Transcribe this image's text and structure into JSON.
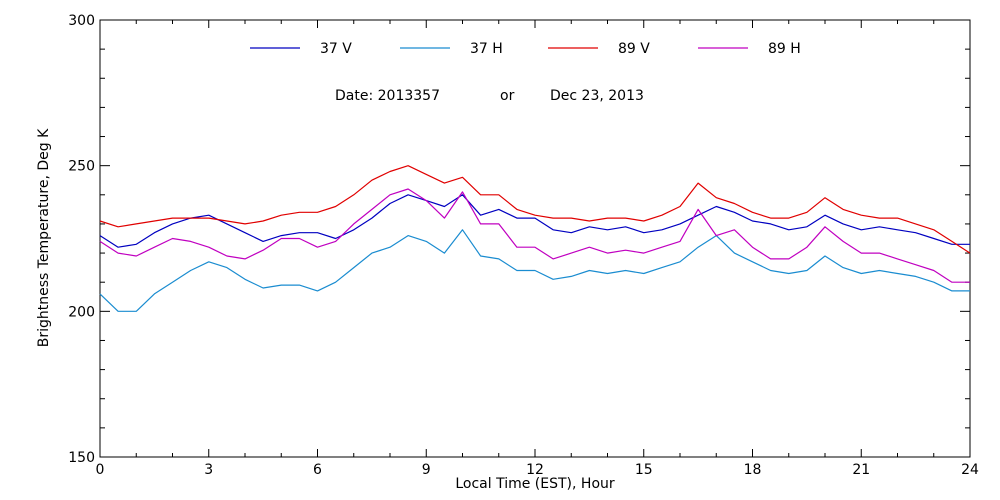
{
  "chart_data": {
    "type": "line",
    "title": "",
    "xlabel": "Local Time (EST), Hour",
    "ylabel": "Brightness Temperature, Deg K",
    "xlim": [
      0,
      24
    ],
    "ylim": [
      150,
      300
    ],
    "x_ticks": [
      0,
      3,
      6,
      9,
      12,
      15,
      18,
      21,
      24
    ],
    "y_ticks": [
      150,
      200,
      250,
      300
    ],
    "grid": false,
    "legend_position": "top",
    "annotation": {
      "date_label": "Date: 2013357",
      "or_label": "or",
      "date_text": "Dec 23, 2013"
    },
    "series": [
      {
        "name": "37 V",
        "color": "#0000c0",
        "x": [
          0,
          0.5,
          1,
          1.5,
          2,
          2.5,
          3,
          3.5,
          4,
          4.5,
          5,
          5.5,
          6,
          6.5,
          7,
          7.5,
          8,
          8.5,
          9,
          9.5,
          10,
          10.5,
          11,
          11.5,
          12,
          12.5,
          13,
          13.5,
          14,
          14.5,
          15,
          15.5,
          16,
          16.5,
          17,
          17.5,
          18,
          18.5,
          19,
          19.5,
          20,
          20.5,
          21,
          21.5,
          22,
          22.5,
          23,
          23.5,
          24
        ],
        "values": [
          226,
          222,
          223,
          227,
          230,
          232,
          233,
          230,
          227,
          224,
          226,
          227,
          227,
          225,
          228,
          232,
          237,
          240,
          238,
          236,
          240,
          233,
          235,
          232,
          232,
          228,
          227,
          229,
          228,
          229,
          227,
          228,
          230,
          233,
          236,
          234,
          231,
          230,
          228,
          229,
          233,
          230,
          228,
          229,
          228,
          227,
          225,
          223,
          223
        ]
      },
      {
        "name": "37 H",
        "color": "#1a8cd0",
        "x": [
          0,
          0.5,
          1,
          1.5,
          2,
          2.5,
          3,
          3.5,
          4,
          4.5,
          5,
          5.5,
          6,
          6.5,
          7,
          7.5,
          8,
          8.5,
          9,
          9.5,
          10,
          10.5,
          11,
          11.5,
          12,
          12.5,
          13,
          13.5,
          14,
          14.5,
          15,
          15.5,
          16,
          16.5,
          17,
          17.5,
          18,
          18.5,
          19,
          19.5,
          20,
          20.5,
          21,
          21.5,
          22,
          22.5,
          23,
          23.5,
          24
        ],
        "values": [
          206,
          200,
          200,
          206,
          210,
          214,
          217,
          215,
          211,
          208,
          209,
          209,
          207,
          210,
          215,
          220,
          222,
          226,
          224,
          220,
          228,
          219,
          218,
          214,
          214,
          211,
          212,
          214,
          213,
          214,
          213,
          215,
          217,
          222,
          226,
          220,
          217,
          214,
          213,
          214,
          219,
          215,
          213,
          214,
          213,
          212,
          210,
          207,
          207
        ]
      },
      {
        "name": "89 V",
        "color": "#e00000",
        "x": [
          0,
          0.5,
          1,
          1.5,
          2,
          2.5,
          3,
          3.5,
          4,
          4.5,
          5,
          5.5,
          6,
          6.5,
          7,
          7.5,
          8,
          8.5,
          9,
          9.5,
          10,
          10.5,
          11,
          11.5,
          12,
          12.5,
          13,
          13.5,
          14,
          14.5,
          15,
          15.5,
          16,
          16.5,
          17,
          17.5,
          18,
          18.5,
          19,
          19.5,
          20,
          20.5,
          21,
          21.5,
          22,
          22.5,
          23,
          23.5,
          24
        ],
        "values": [
          231,
          229,
          230,
          231,
          232,
          232,
          232,
          231,
          230,
          231,
          233,
          234,
          234,
          236,
          240,
          245,
          248,
          250,
          247,
          244,
          246,
          240,
          240,
          235,
          233,
          232,
          232,
          231,
          232,
          232,
          231,
          233,
          236,
          244,
          239,
          237,
          234,
          232,
          232,
          234,
          239,
          235,
          233,
          232,
          232,
          230,
          228,
          224,
          220
        ]
      },
      {
        "name": "89 H",
        "color": "#c000c0",
        "x": [
          0,
          0.5,
          1,
          1.5,
          2,
          2.5,
          3,
          3.5,
          4,
          4.5,
          5,
          5.5,
          6,
          6.5,
          7,
          7.5,
          8,
          8.5,
          9,
          9.5,
          10,
          10.5,
          11,
          11.5,
          12,
          12.5,
          13,
          13.5,
          14,
          14.5,
          15,
          15.5,
          16,
          16.5,
          17,
          17.5,
          18,
          18.5,
          19,
          19.5,
          20,
          20.5,
          21,
          21.5,
          22,
          22.5,
          23,
          23.5,
          24
        ],
        "values": [
          224,
          220,
          219,
          222,
          225,
          224,
          222,
          219,
          218,
          221,
          225,
          225,
          222,
          224,
          230,
          235,
          240,
          242,
          238,
          232,
          241,
          230,
          230,
          222,
          222,
          218,
          220,
          222,
          220,
          221,
          220,
          222,
          224,
          235,
          226,
          228,
          222,
          218,
          218,
          222,
          229,
          224,
          220,
          220,
          218,
          216,
          214,
          210,
          210
        ]
      }
    ]
  }
}
